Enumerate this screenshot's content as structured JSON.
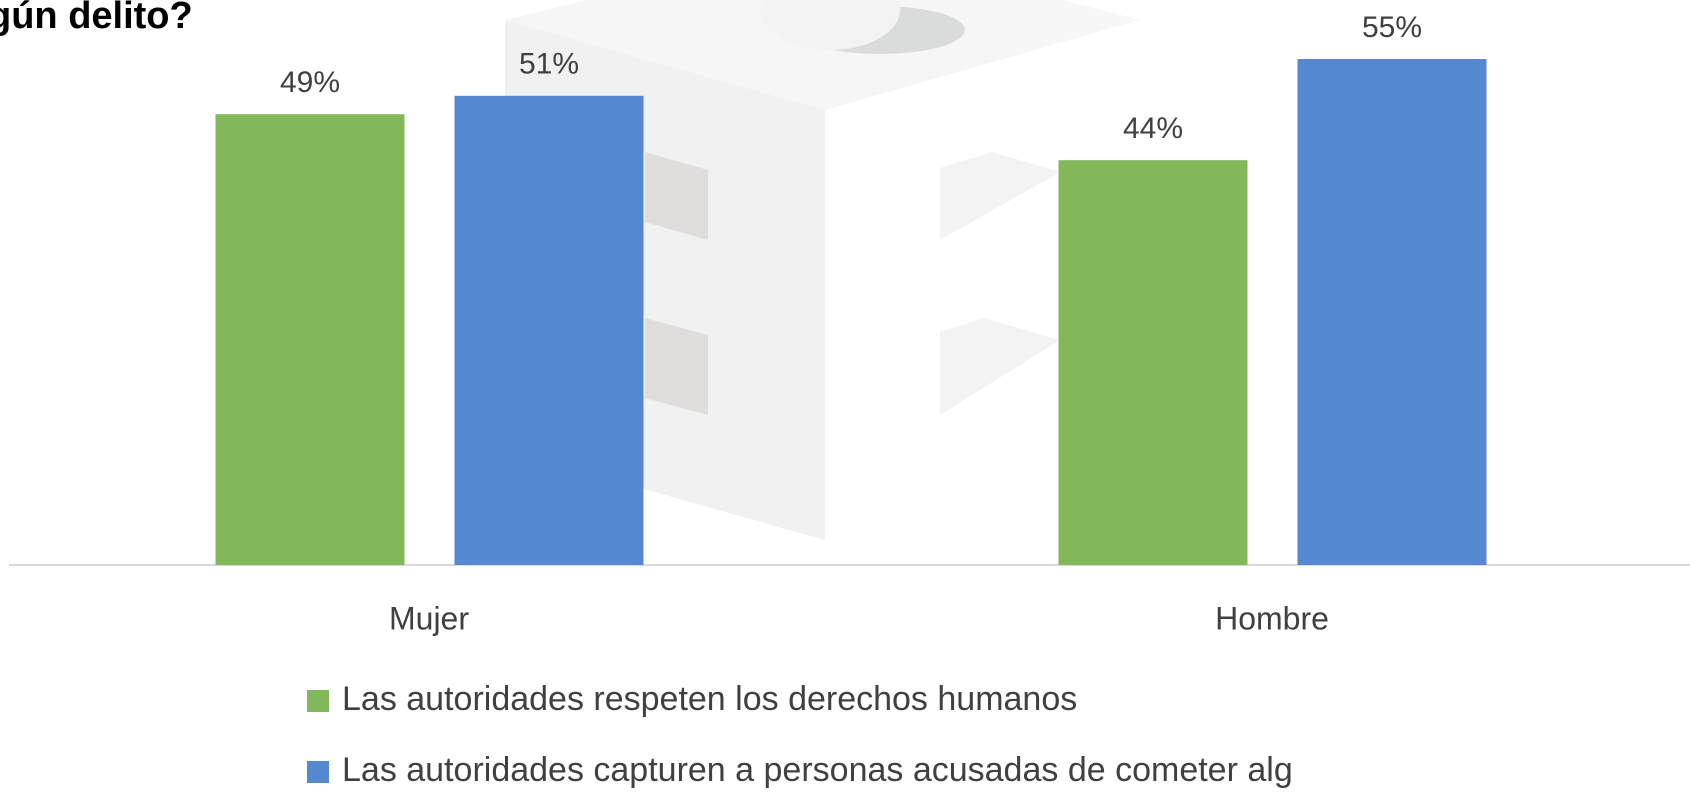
{
  "chart_data": {
    "type": "bar",
    "title": "gún delito?",
    "categories": [
      "Mujer",
      "Hombre"
    ],
    "series": [
      {
        "name": "Las autoridades respeten los derechos humanos",
        "color": "#82b85a",
        "values": [
          49,
          44
        ],
        "value_labels": [
          "49%",
          "44%"
        ]
      },
      {
        "name": "Las autoridades capturen a personas acusadas de cometer alg",
        "color": "#5488d0",
        "values": [
          51,
          55
        ],
        "value_labels": [
          "51%",
          "55%"
        ]
      }
    ],
    "ylim": [
      0,
      60
    ],
    "legend": "bottom"
  }
}
